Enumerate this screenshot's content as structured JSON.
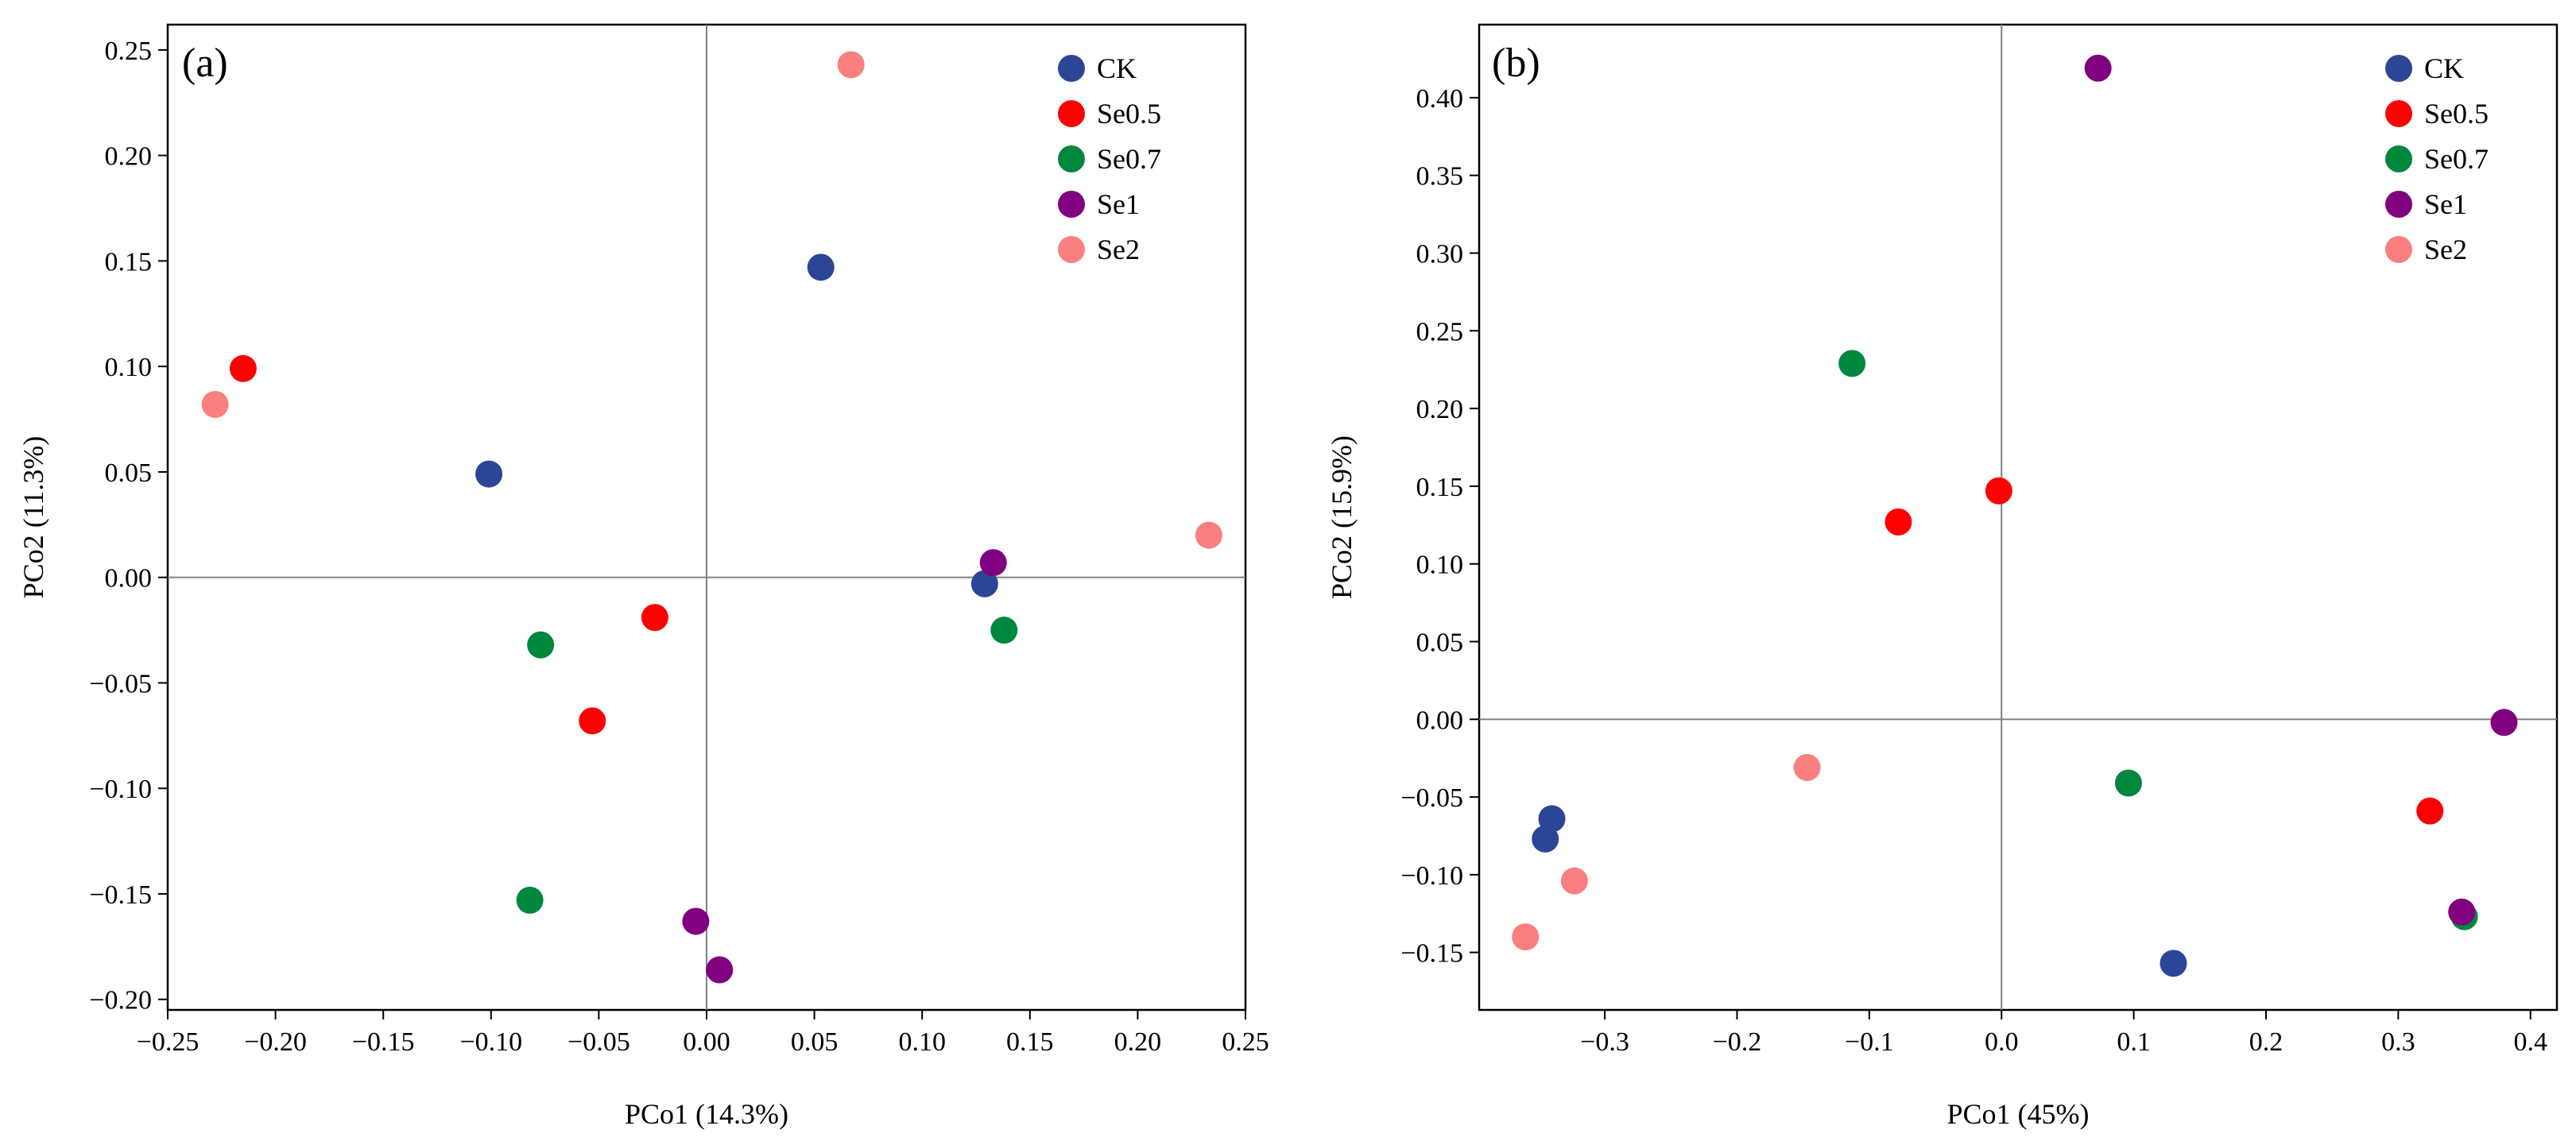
{
  "chart_data": [
    {
      "type": "scatter",
      "panel_label": "(a)",
      "xlabel": "PCo1 (14.3%)",
      "ylabel": "PCo2 (11.3%)",
      "xlim": [
        -0.25,
        0.25
      ],
      "ylim": [
        -0.205,
        0.262
      ],
      "xticks": [
        -0.25,
        -0.2,
        -0.15,
        -0.1,
        -0.05,
        0.0,
        0.05,
        0.1,
        0.15,
        0.2,
        0.25
      ],
      "xtick_labels": [
        "−0.25",
        "−0.20",
        "−0.15",
        "−0.10",
        "−0.05",
        "0.00",
        "0.05",
        "0.10",
        "0.15",
        "0.20",
        "0.25"
      ],
      "yticks": [
        -0.2,
        -0.15,
        -0.1,
        -0.05,
        0.0,
        0.05,
        0.1,
        0.15,
        0.2,
        0.25
      ],
      "ytick_labels": [
        "−0.20",
        "−0.15",
        "−0.10",
        "−0.05",
        "0.00",
        "0.05",
        "0.10",
        "0.15",
        "0.20",
        "0.25"
      ],
      "grid": false,
      "reference_lines": {
        "x": 0,
        "y": 0
      },
      "legend_position": "top-right",
      "series": [
        {
          "name": "CK",
          "color": "#2B4597",
          "points": [
            [
              -0.101,
              0.049
            ],
            [
              0.053,
              0.147
            ],
            [
              0.129,
              -0.003
            ]
          ]
        },
        {
          "name": "Se0.5",
          "color": "#FF0000",
          "points": [
            [
              -0.215,
              0.099
            ],
            [
              -0.024,
              -0.019
            ],
            [
              -0.053,
              -0.068
            ]
          ]
        },
        {
          "name": "Se0.7",
          "color": "#00873E",
          "points": [
            [
              -0.077,
              -0.032
            ],
            [
              0.138,
              -0.025
            ],
            [
              -0.082,
              -0.153
            ]
          ]
        },
        {
          "name": "Se1",
          "color": "#800080",
          "points": [
            [
              0.133,
              0.007
            ],
            [
              -0.005,
              -0.163
            ],
            [
              0.006,
              -0.186
            ]
          ]
        },
        {
          "name": "Se2",
          "color": "#FA7F7F",
          "points": [
            [
              -0.228,
              0.082
            ],
            [
              0.067,
              0.243
            ],
            [
              0.233,
              0.02
            ]
          ]
        }
      ]
    },
    {
      "type": "scatter",
      "panel_label": "(b)",
      "xlabel": "PCo1 (45%)",
      "ylabel": "PCo2 (15.9%)",
      "xlim": [
        -0.395,
        0.42
      ],
      "ylim": [
        -0.187,
        0.447
      ],
      "xticks": [
        -0.3,
        -0.2,
        -0.1,
        0.0,
        0.1,
        0.2,
        0.3,
        0.4
      ],
      "xtick_labels": [
        "−0.3",
        "−0.2",
        "−0.1",
        "0.0",
        "0.1",
        "0.2",
        "0.3",
        "0.4"
      ],
      "yticks": [
        -0.15,
        -0.1,
        -0.05,
        0.0,
        0.05,
        0.1,
        0.15,
        0.2,
        0.25,
        0.3,
        0.35,
        0.4
      ],
      "ytick_labels": [
        "−0.15",
        "−0.10",
        "−0.05",
        "0.00",
        "0.05",
        "0.10",
        "0.15",
        "0.20",
        "0.25",
        "0.30",
        "0.35",
        "0.40"
      ],
      "grid": false,
      "reference_lines": {
        "x": 0,
        "y": 0
      },
      "legend_position": "top-right",
      "series": [
        {
          "name": "CK",
          "color": "#2B4597",
          "points": [
            [
              -0.34,
              -0.064
            ],
            [
              -0.345,
              -0.077
            ],
            [
              0.13,
              -0.157
            ]
          ]
        },
        {
          "name": "Se0.5",
          "color": "#FF0000",
          "points": [
            [
              -0.002,
              0.147
            ],
            [
              -0.078,
              0.127
            ],
            [
              0.324,
              -0.059
            ]
          ]
        },
        {
          "name": "Se0.7",
          "color": "#00873E",
          "points": [
            [
              -0.113,
              0.229
            ],
            [
              0.096,
              -0.041
            ],
            [
              0.35,
              -0.127
            ]
          ]
        },
        {
          "name": "Se1",
          "color": "#800080",
          "points": [
            [
              0.073,
              0.419
            ],
            [
              0.38,
              -0.002
            ],
            [
              0.348,
              -0.124
            ]
          ]
        },
        {
          "name": "Se2",
          "color": "#FA7F7F",
          "points": [
            [
              -0.147,
              -0.031
            ],
            [
              -0.323,
              -0.104
            ],
            [
              -0.36,
              -0.14
            ]
          ]
        }
      ]
    }
  ]
}
